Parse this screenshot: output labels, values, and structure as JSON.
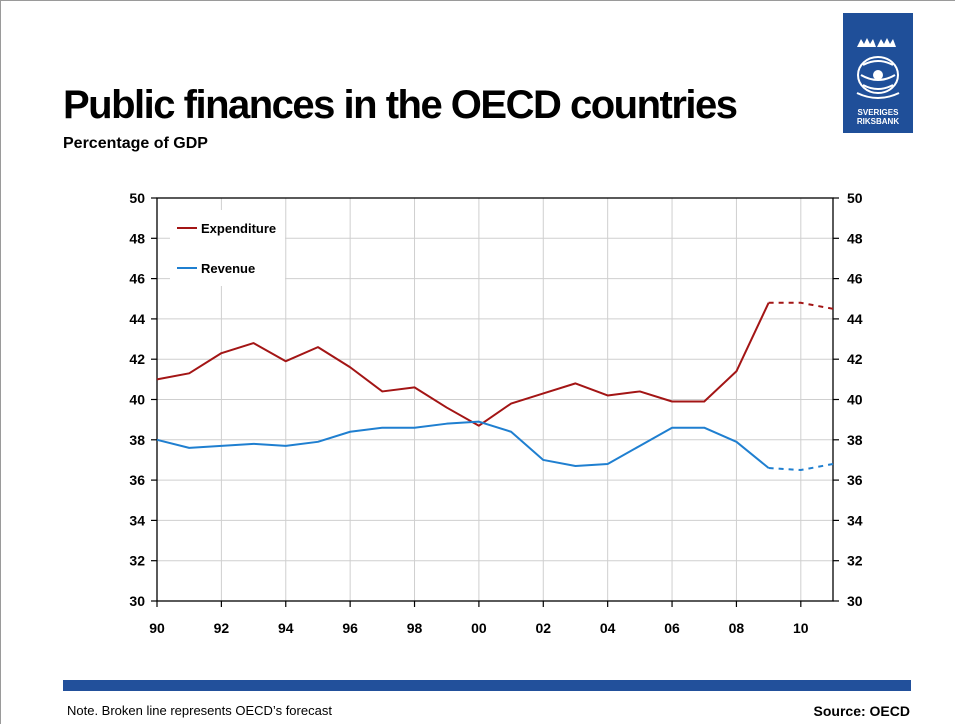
{
  "page": {
    "title": "Public finances in the OECD countries",
    "subtitle": "Percentage of GDP",
    "note": "Note. Broken line represents OECD’s forecast",
    "source": "Source: OECD",
    "logo": {
      "line1": "SVERIGES",
      "line2": "RIKSBANK",
      "icon": "riksbank-crest-icon"
    }
  },
  "colors": {
    "expenditure": "#a31515",
    "revenue": "#1f7fd0",
    "band": "#22509b",
    "logo": "#1f4f99"
  },
  "chart_data": {
    "type": "line",
    "title": "",
    "xlabel": "",
    "ylabel": "",
    "x_tick_labels": [
      "90",
      "92",
      "94",
      "96",
      "98",
      "00",
      "02",
      "04",
      "06",
      "08",
      "10"
    ],
    "x_tick_years": [
      1990,
      1992,
      1994,
      1996,
      1998,
      2000,
      2002,
      2004,
      2006,
      2008,
      2010
    ],
    "xlim": [
      1990,
      2011
    ],
    "ylim": [
      30,
      50
    ],
    "y_ticks": [
      30,
      32,
      34,
      36,
      38,
      40,
      42,
      44,
      46,
      48,
      50
    ],
    "grid": true,
    "dual_y_axis": true,
    "legend_position": "top-left",
    "series": [
      {
        "name": "Expenditure",
        "color": "#a31515",
        "x": [
          1990,
          1991,
          1992,
          1993,
          1994,
          1995,
          1996,
          1997,
          1998,
          1999,
          2000,
          2001,
          2002,
          2003,
          2004,
          2005,
          2006,
          2007,
          2008,
          2009
        ],
        "values": [
          41.0,
          41.3,
          42.3,
          42.8,
          41.9,
          42.6,
          41.6,
          40.4,
          40.6,
          39.6,
          38.7,
          39.8,
          40.3,
          40.8,
          40.2,
          40.4,
          39.9,
          39.9,
          41.4,
          44.8
        ],
        "forecast_x": [
          2009,
          2010,
          2011
        ],
        "forecast_values": [
          44.8,
          44.8,
          44.5
        ]
      },
      {
        "name": "Revenue",
        "color": "#1f7fd0",
        "x": [
          1990,
          1991,
          1992,
          1993,
          1994,
          1995,
          1996,
          1997,
          1998,
          1999,
          2000,
          2001,
          2002,
          2003,
          2004,
          2005,
          2006,
          2007,
          2008,
          2009
        ],
        "values": [
          38.0,
          37.6,
          37.7,
          37.8,
          37.7,
          37.9,
          38.4,
          38.6,
          38.6,
          38.8,
          38.9,
          38.4,
          37.0,
          36.7,
          36.8,
          37.7,
          38.6,
          38.6,
          37.9,
          36.6
        ],
        "forecast_x": [
          2009,
          2010,
          2011
        ],
        "forecast_values": [
          36.6,
          36.5,
          36.8
        ]
      }
    ]
  }
}
